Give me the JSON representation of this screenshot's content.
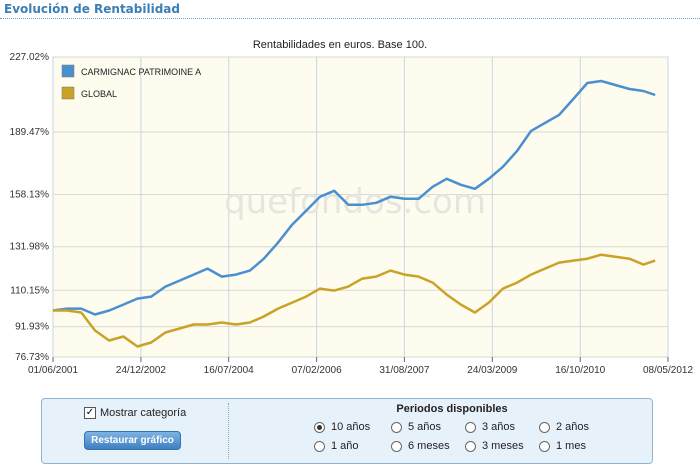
{
  "header": {
    "title": "Evolución de Rentabilidad"
  },
  "watermark": "quefondos.com",
  "chart_data": {
    "type": "line",
    "title": "Rentabilidades en euros. Base 100.",
    "ylim": [
      76.73,
      227.02
    ],
    "y_ticks": [
      "227.02%",
      "189.47%",
      "158.13%",
      "131.98%",
      "110.15%",
      "91.93%",
      "76.73%"
    ],
    "y_tick_values": [
      227.02,
      189.47,
      158.13,
      131.98,
      110.15,
      91.93,
      76.73
    ],
    "x_ticks": [
      "01/06/2001",
      "24/12/2002",
      "16/07/2004",
      "07/02/2006",
      "31/08/2007",
      "24/03/2009",
      "16/10/2010",
      "08/05/2012"
    ],
    "xlim": [
      "2001-06-01",
      "2012-05-08"
    ],
    "legend_position": "top-left",
    "grid": true,
    "series": [
      {
        "name": "CARMIGNAC PATRIMOINE A",
        "color": "#4a90d0",
        "x": [
          "2001-06-01",
          "2001-09-01",
          "2001-12-01",
          "2002-03-01",
          "2002-06-01",
          "2002-09-01",
          "2002-12-01",
          "2003-03-01",
          "2003-06-01",
          "2003-09-01",
          "2003-12-01",
          "2004-03-01",
          "2004-06-01",
          "2004-09-01",
          "2004-12-01",
          "2005-03-01",
          "2005-06-01",
          "2005-09-01",
          "2005-12-01",
          "2006-03-01",
          "2006-06-01",
          "2006-09-01",
          "2006-12-01",
          "2007-03-01",
          "2007-06-01",
          "2007-09-01",
          "2007-12-01",
          "2008-03-01",
          "2008-06-01",
          "2008-09-01",
          "2008-12-01",
          "2009-03-01",
          "2009-06-01",
          "2009-09-01",
          "2009-12-01",
          "2010-03-01",
          "2010-06-01",
          "2010-09-01",
          "2010-12-01",
          "2011-03-01",
          "2011-06-01",
          "2011-09-01",
          "2011-12-01",
          "2012-02-15"
        ],
        "values": [
          100,
          101,
          101,
          98,
          100,
          103,
          106,
          107,
          112,
          115,
          118,
          121,
          117,
          118,
          120,
          126,
          134,
          143,
          150,
          157,
          160,
          153,
          153,
          154,
          157,
          156,
          156,
          162,
          166,
          163,
          161,
          166,
          172,
          180,
          190,
          194,
          198,
          206,
          214,
          215,
          213,
          211,
          210,
          208
        ]
      },
      {
        "name": "GLOBAL",
        "color": "#c9a227",
        "x": [
          "2001-06-01",
          "2001-09-01",
          "2001-12-01",
          "2002-03-01",
          "2002-06-01",
          "2002-09-01",
          "2002-12-01",
          "2003-03-01",
          "2003-06-01",
          "2003-09-01",
          "2003-12-01",
          "2004-03-01",
          "2004-06-01",
          "2004-09-01",
          "2004-12-01",
          "2005-03-01",
          "2005-06-01",
          "2005-09-01",
          "2005-12-01",
          "2006-03-01",
          "2006-06-01",
          "2006-09-01",
          "2006-12-01",
          "2007-03-01",
          "2007-06-01",
          "2007-09-01",
          "2007-12-01",
          "2008-03-01",
          "2008-06-01",
          "2008-09-01",
          "2008-12-01",
          "2009-03-01",
          "2009-06-01",
          "2009-09-01",
          "2009-12-01",
          "2010-03-01",
          "2010-06-01",
          "2010-09-01",
          "2010-12-01",
          "2011-03-01",
          "2011-06-01",
          "2011-09-01",
          "2011-12-01",
          "2012-02-15"
        ],
        "values": [
          100,
          100,
          99,
          90,
          85,
          87,
          82,
          84,
          89,
          91,
          93,
          93,
          94,
          93,
          94,
          97,
          101,
          104,
          107,
          111,
          110,
          112,
          116,
          117,
          120,
          118,
          117,
          114,
          108,
          103,
          99,
          104,
          111,
          114,
          118,
          121,
          124,
          125,
          126,
          128,
          127,
          126,
          123,
          125
        ]
      }
    ]
  },
  "controls": {
    "show_category_label": "Mostrar categoría",
    "show_category_checked": true,
    "reset_button": "Restaurar gráfico",
    "periods_title": "Periodos disponibles",
    "periods": [
      {
        "label": "10 años",
        "selected": true
      },
      {
        "label": "5 años",
        "selected": false
      },
      {
        "label": "3 años",
        "selected": false
      },
      {
        "label": "2 años",
        "selected": false
      },
      {
        "label": "1 año",
        "selected": false
      },
      {
        "label": "6 meses",
        "selected": false
      },
      {
        "label": "3 meses",
        "selected": false
      },
      {
        "label": "1 mes",
        "selected": false
      }
    ]
  }
}
